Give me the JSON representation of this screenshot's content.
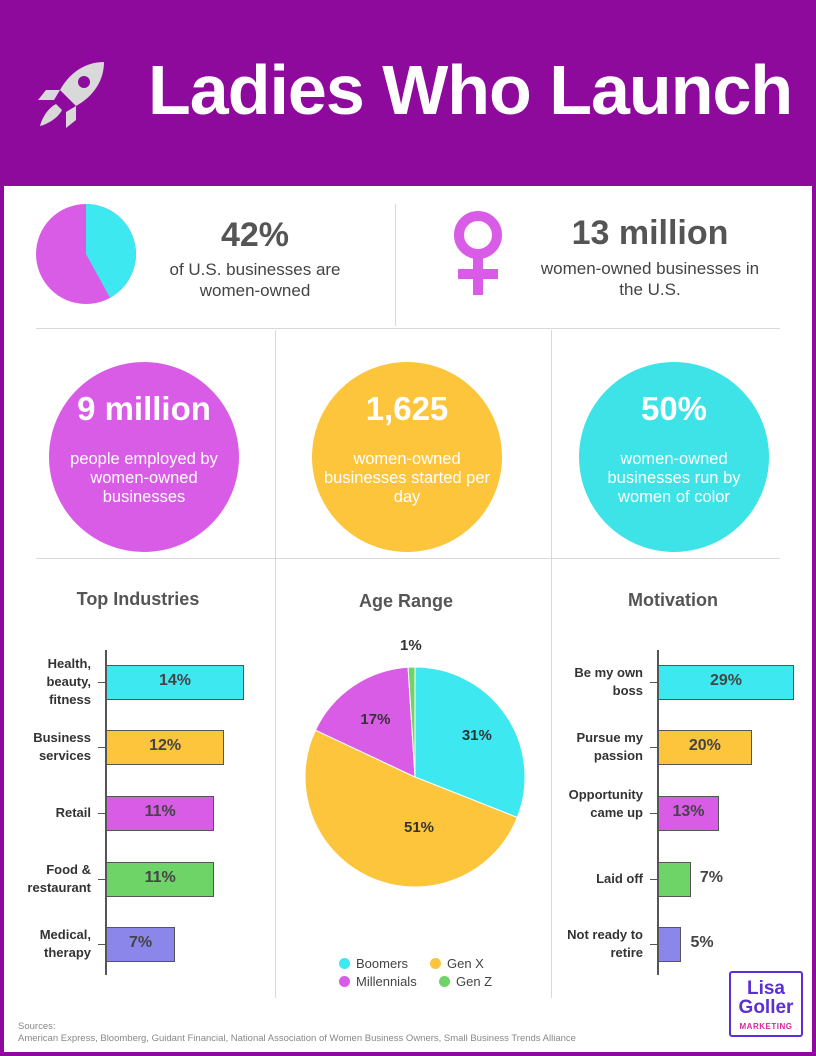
{
  "header": {
    "title": "Ladies Who Launch"
  },
  "stats": {
    "businesses_pct": {
      "value": "42%",
      "text": "of U.S. businesses are women-owned"
    },
    "businesses_count": {
      "value": "13 million",
      "text": "women-owned businesses in the U.S."
    }
  },
  "circles": [
    {
      "value": "9 million",
      "text": "people employed by women-owned businesses",
      "color": "#d95ce6"
    },
    {
      "value": "1,625",
      "text": "women-owned businesses started per day",
      "color": "#fcc53c"
    },
    {
      "value": "50%",
      "text": "women-owned businesses run by women of color",
      "color": "#3ee3e8"
    }
  ],
  "colors": {
    "cyan": "#3ee8f0",
    "yellow": "#fcc53c",
    "magenta": "#d95ce6",
    "green": "#6fd468",
    "periwinkle": "#8b87ea",
    "brand_purple": "#8e0a9c"
  },
  "chart_data": [
    {
      "type": "bar",
      "orientation": "horizontal",
      "title": "Top Industries",
      "categories": [
        "Health, beauty, fitness",
        "Business services",
        "Retail",
        "Food & restaurant",
        "Medical, therapy"
      ],
      "values": [
        14,
        12,
        11,
        11,
        7
      ],
      "labels": [
        "14%",
        "12%",
        "11%",
        "11%",
        "7%"
      ],
      "colors": [
        "#3ee8f0",
        "#fcc53c",
        "#d95ce6",
        "#6fd468",
        "#8b87ea"
      ]
    },
    {
      "type": "pie",
      "title": "Age Range",
      "categories": [
        "Boomers",
        "Gen X",
        "Millennials",
        "Gen Z"
      ],
      "values": [
        31,
        51,
        17,
        1
      ],
      "labels": [
        "31%",
        "51%",
        "17%",
        "1%"
      ],
      "colors": [
        "#3ee8f0",
        "#fcc53c",
        "#d95ce6",
        "#6fd468"
      ],
      "legend": "bottom"
    },
    {
      "type": "bar",
      "orientation": "horizontal",
      "title": "Motivation",
      "categories": [
        "Be my own boss",
        "Pursue my passion",
        "Opportunity came up",
        "Laid off",
        "Not ready to retire"
      ],
      "values": [
        29,
        20,
        13,
        7,
        5
      ],
      "labels": [
        "29%",
        "20%",
        "13%",
        "7%",
        "5%"
      ],
      "colors": [
        "#3ee8f0",
        "#fcc53c",
        "#d95ce6",
        "#6fd468",
        "#8b87ea"
      ]
    }
  ],
  "footer": {
    "sources_title": "Sources:",
    "sources_text": "American Express, Bloomberg, Guidant Financial, National Association of Women Business Owners, Small Business Trends Alliance",
    "logo_line1": "Lisa",
    "logo_line2": "Goller",
    "logo_line3": "MARKETING"
  }
}
